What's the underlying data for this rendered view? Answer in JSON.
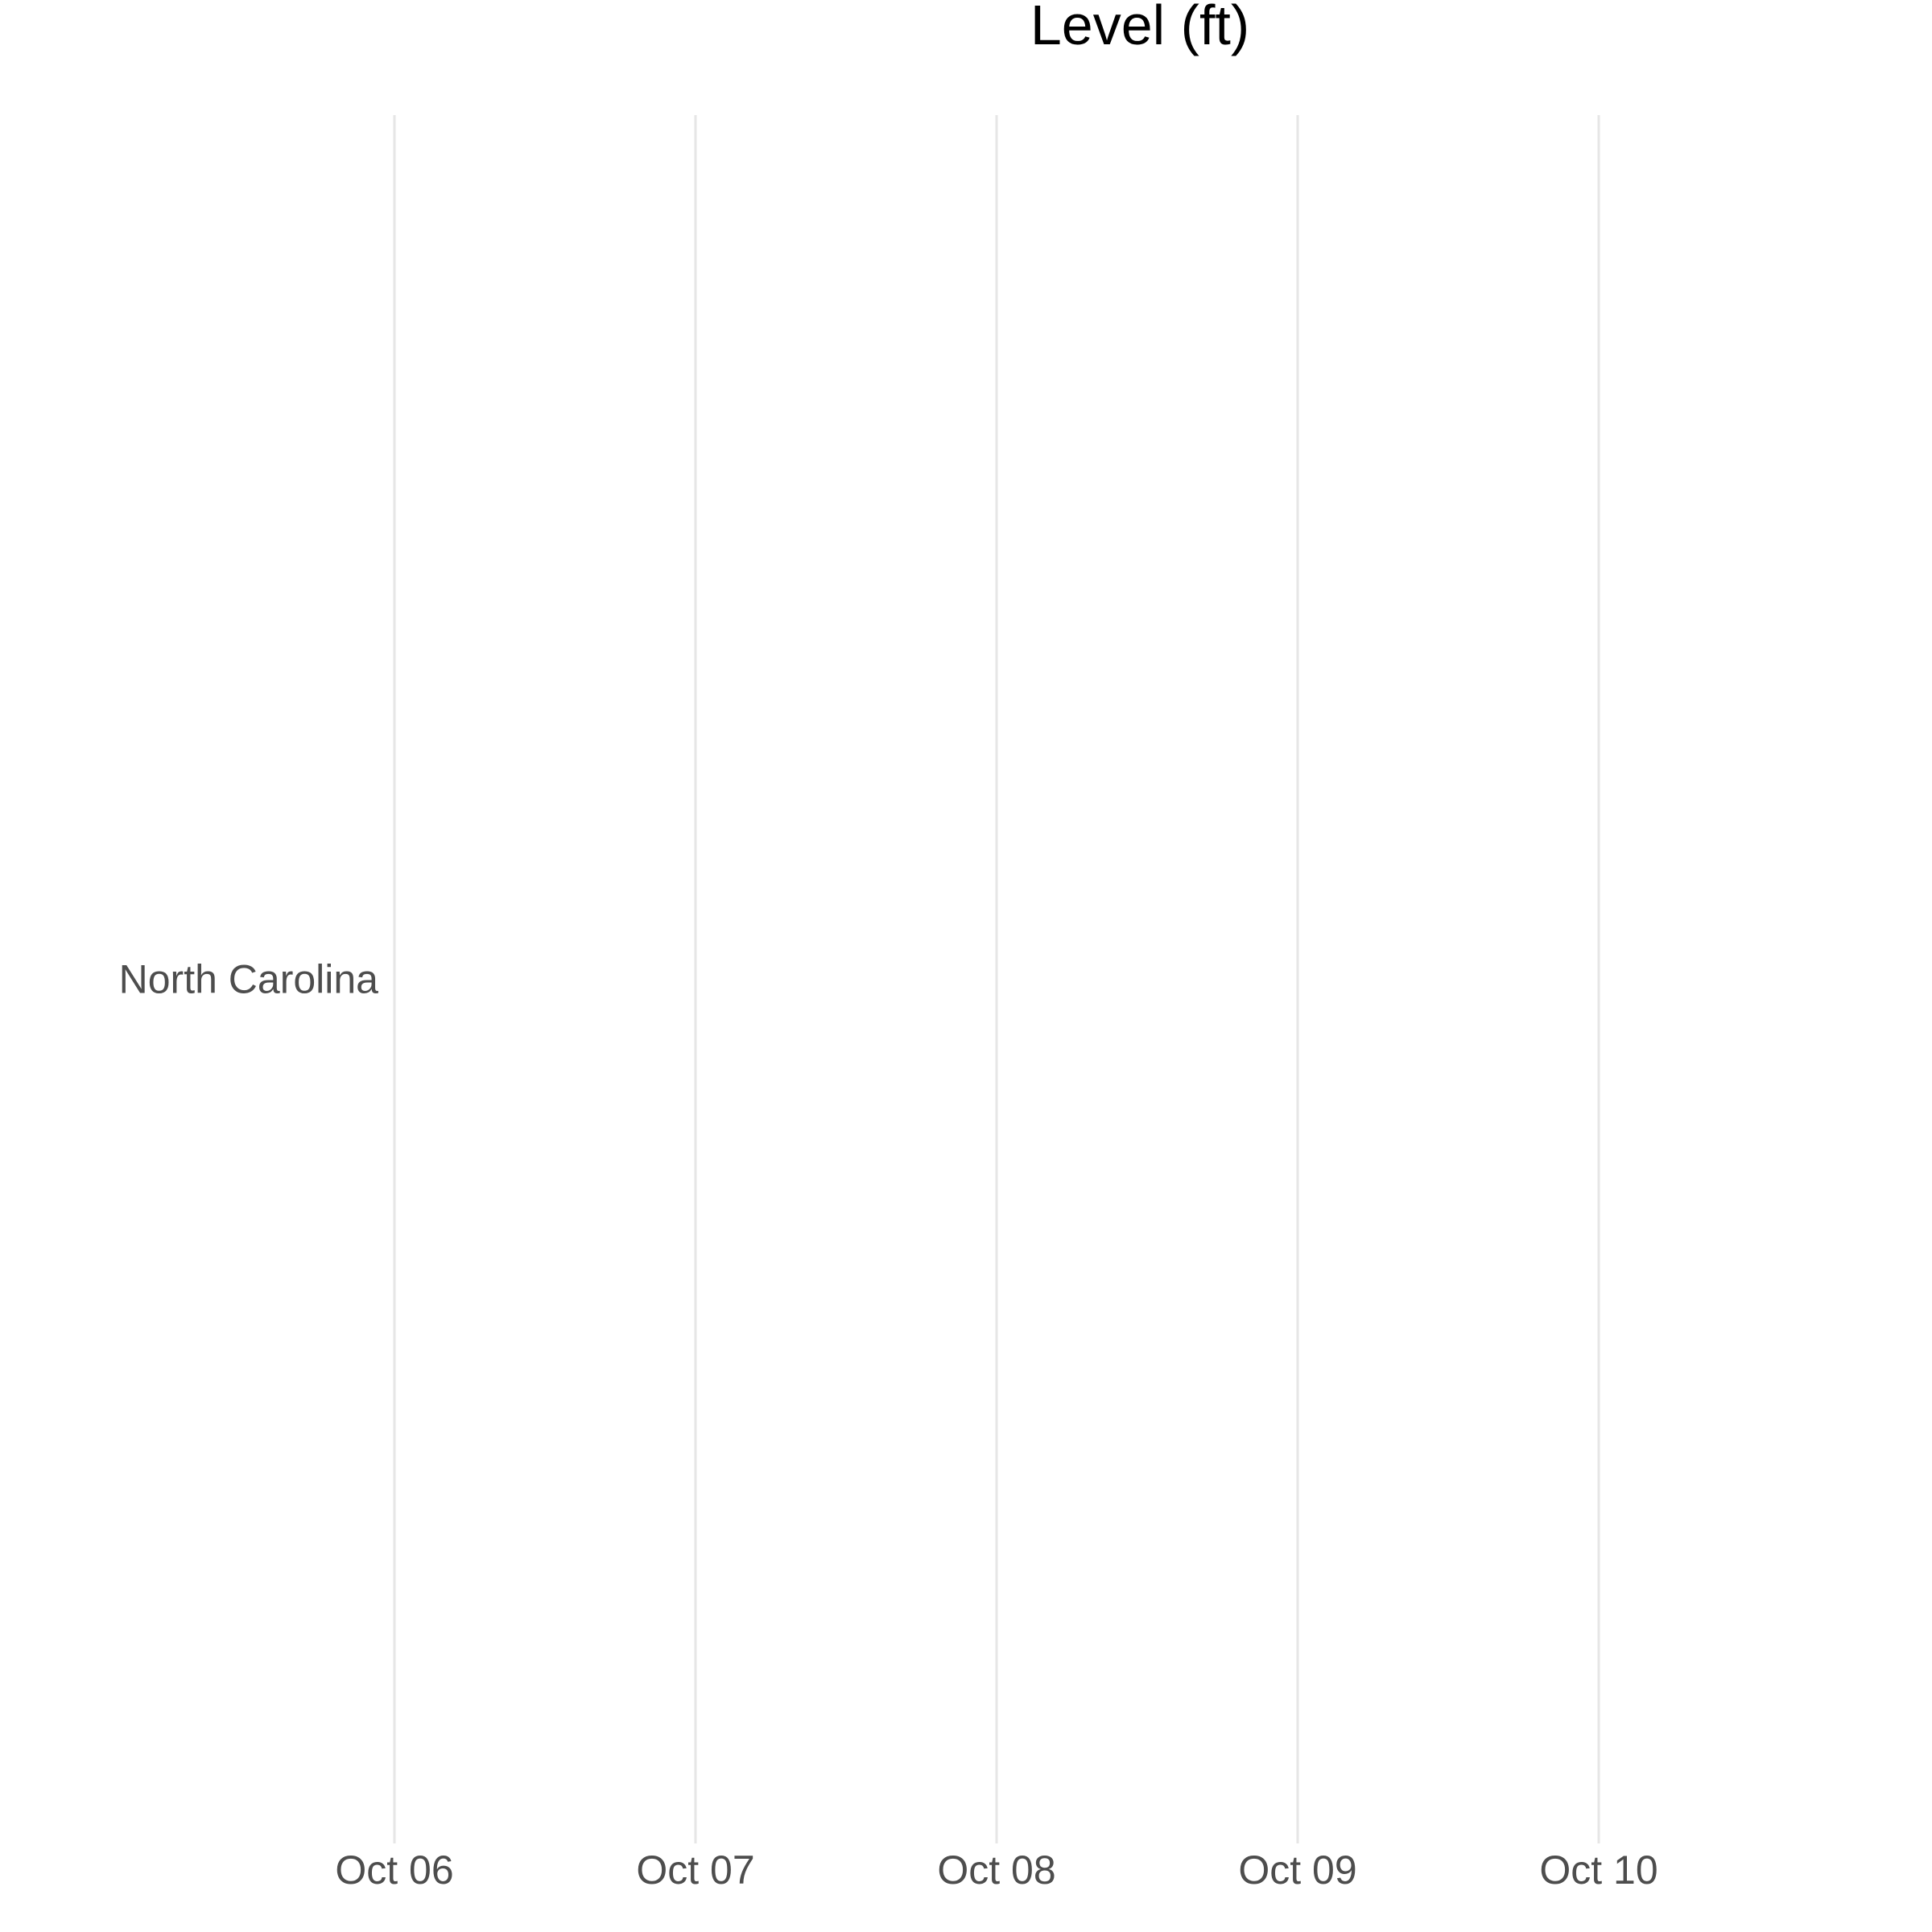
{
  "chart_data": {
    "type": "heatmap",
    "title": "Level (ft)",
    "xlabel": "",
    "ylabel": "",
    "x_ticks": [
      "Oct 06",
      "Oct 07",
      "Oct 08",
      "Oct 09",
      "Oct 10"
    ],
    "x_tick_dates": [
      "2024-10-06",
      "2024-10-07",
      "2024-10-08",
      "2024-10-09",
      "2024-10-10"
    ],
    "xlim": [
      "2024-10-06",
      "2024-10-11"
    ],
    "y_categories": [
      "North Carolina"
    ],
    "series": [],
    "grid": "vertical-major",
    "grid_color": "#e6e6e6",
    "tick_label_color": "#4d4d4d",
    "title_color": "#000000",
    "legend": "none"
  }
}
